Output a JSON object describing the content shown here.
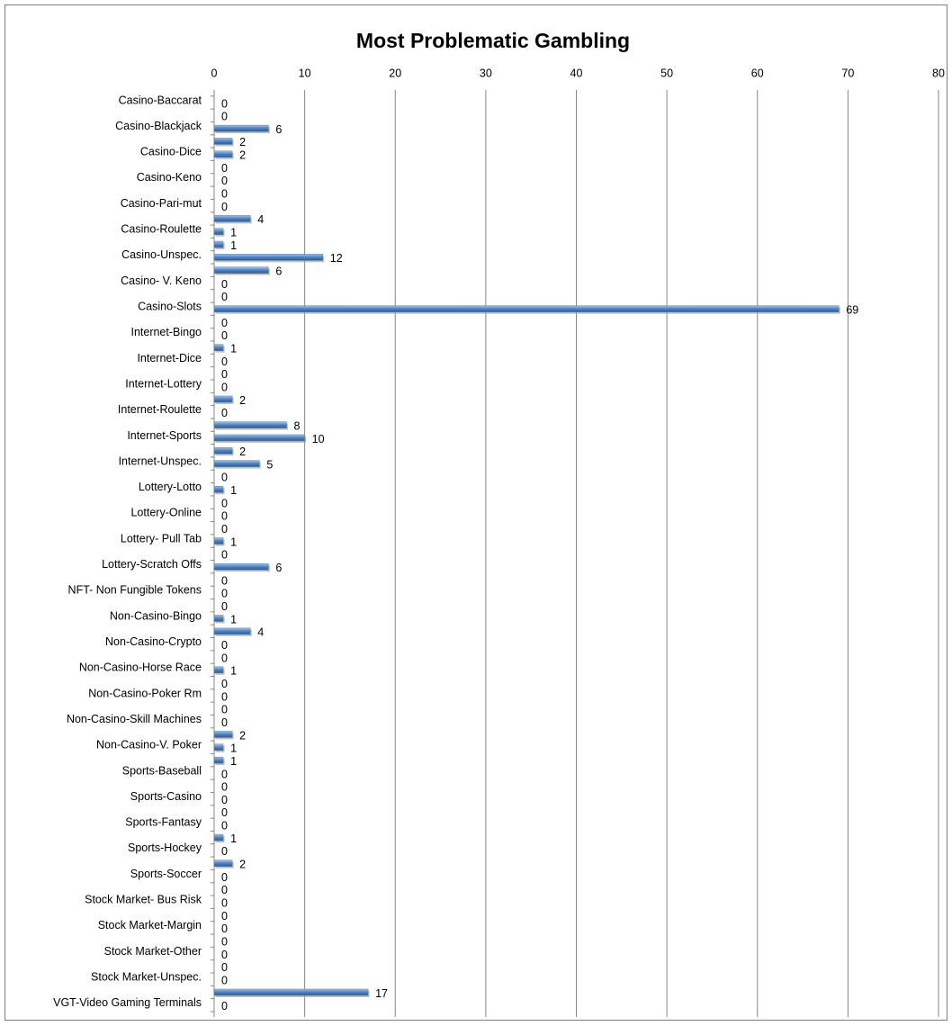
{
  "chart_data": {
    "type": "bar",
    "orientation": "horizontal",
    "title": "Most Problematic Gambling",
    "categories": [
      "Casino-Baccarat",
      null,
      "Casino-Blackjack",
      null,
      "Casino-Dice",
      null,
      "Casino-Keno",
      null,
      "Casino-Pari-mut",
      null,
      "Casino-Roulette",
      null,
      "Casino-Unspec.",
      null,
      "Casino- V. Keno",
      null,
      "Casino-Slots",
      null,
      "Internet-Bingo",
      null,
      "Internet-Dice",
      null,
      "Internet-Lottery",
      null,
      "Internet-Roulette",
      null,
      "Internet-Sports",
      null,
      "Internet-Unspec.",
      null,
      "Lottery-Lotto",
      null,
      "Lottery-Online",
      null,
      "Lottery- Pull Tab",
      null,
      "Lottery-Scratch Offs",
      null,
      "NFT- Non Fungible Tokens",
      null,
      "Non-Casino-Bingo",
      null,
      "Non-Casino-Crypto",
      null,
      "Non-Casino-Horse Race",
      null,
      "Non-Casino-Poker Rm",
      null,
      "Non-Casino-Skill Machines",
      null,
      "Non-Casino-V. Poker",
      null,
      "Sports-Baseball",
      null,
      "Sports-Casino",
      null,
      "Sports-Fantasy",
      null,
      "Sports-Hockey",
      null,
      "Sports-Soccer",
      null,
      "Stock Market- Bus Risk",
      null,
      "Stock Market-Margin",
      null,
      "Stock Market-Other",
      null,
      "Stock Market-Unspec.",
      null,
      "VGT-Video Gaming Terminals"
    ],
    "values": [
      0,
      0,
      6,
      2,
      2,
      0,
      0,
      0,
      0,
      4,
      1,
      1,
      12,
      6,
      0,
      0,
      69,
      0,
      0,
      1,
      0,
      0,
      0,
      2,
      0,
      8,
      10,
      2,
      5,
      0,
      1,
      0,
      0,
      0,
      1,
      0,
      6,
      0,
      0,
      0,
      1,
      4,
      0,
      0,
      1,
      0,
      0,
      0,
      0,
      2,
      1,
      1,
      0,
      0,
      0,
      0,
      0,
      1,
      0,
      2,
      0,
      0,
      0,
      0,
      0,
      0,
      0,
      0,
      0,
      17,
      0
    ],
    "color": "#4f81bd",
    "xlim": [
      0,
      80
    ],
    "xticks": [
      0,
      10,
      20,
      30,
      40,
      50,
      60,
      70,
      80
    ],
    "grid": true
  }
}
